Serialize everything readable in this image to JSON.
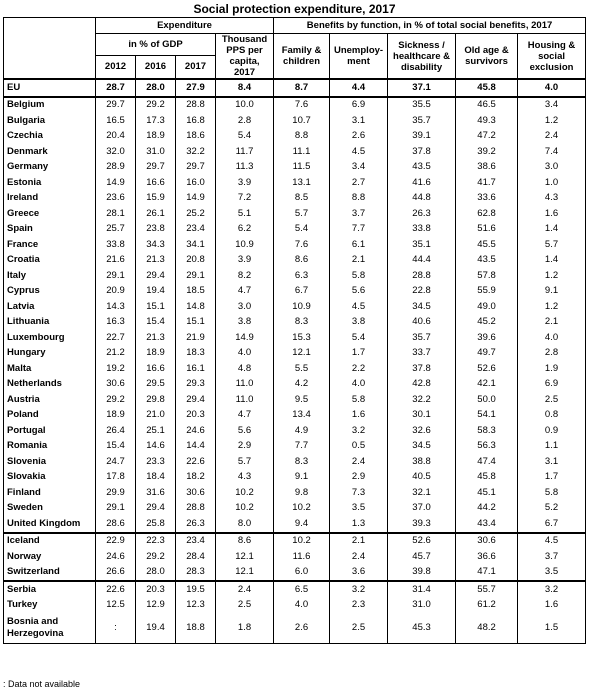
{
  "title": "Social protection expenditure, 2017",
  "header": {
    "expenditure": "Expenditure",
    "benefits": "Benefits by function, in % of total social benefits, 2017",
    "pct_gdp": "in % of GDP",
    "pps": "Thousand PPS per capita, 2017",
    "years": [
      "2012",
      "2016",
      "2017"
    ],
    "family": "Family & children",
    "unemployment": "Unemploy-ment",
    "sickness": "Sickness / healthcare & disability",
    "oldage": "Old age & survivors",
    "housing": "Housing & social exclusion"
  },
  "rows": [
    {
      "country": "EU",
      "v": [
        "28.7",
        "28.0",
        "27.9",
        "8.4",
        "8.7",
        "4.4",
        "37.1",
        "45.8",
        "4.0"
      ]
    },
    {
      "country": "Belgium",
      "v": [
        "29.7",
        "29.2",
        "28.8",
        "10.0",
        "7.6",
        "6.9",
        "35.5",
        "46.5",
        "3.4"
      ]
    },
    {
      "country": "Bulgaria",
      "v": [
        "16.5",
        "17.3",
        "16.8",
        "2.8",
        "10.7",
        "3.1",
        "35.7",
        "49.3",
        "1.2"
      ]
    },
    {
      "country": "Czechia",
      "v": [
        "20.4",
        "18.9",
        "18.6",
        "5.4",
        "8.8",
        "2.6",
        "39.1",
        "47.2",
        "2.4"
      ]
    },
    {
      "country": "Denmark",
      "v": [
        "32.0",
        "31.0",
        "32.2",
        "11.7",
        "11.1",
        "4.5",
        "37.8",
        "39.2",
        "7.4"
      ]
    },
    {
      "country": "Germany",
      "v": [
        "28.9",
        "29.7",
        "29.7",
        "11.3",
        "11.5",
        "3.4",
        "43.5",
        "38.6",
        "3.0"
      ]
    },
    {
      "country": "Estonia",
      "v": [
        "14.9",
        "16.6",
        "16.0",
        "3.9",
        "13.1",
        "2.7",
        "41.6",
        "41.7",
        "1.0"
      ]
    },
    {
      "country": "Ireland",
      "v": [
        "23.6",
        "15.9",
        "14.9",
        "7.2",
        "8.5",
        "8.8",
        "44.8",
        "33.6",
        "4.3"
      ]
    },
    {
      "country": "Greece",
      "v": [
        "28.1",
        "26.1",
        "25.2",
        "5.1",
        "5.7",
        "3.7",
        "26.3",
        "62.8",
        "1.6"
      ]
    },
    {
      "country": "Spain",
      "v": [
        "25.7",
        "23.8",
        "23.4",
        "6.2",
        "5.4",
        "7.7",
        "33.8",
        "51.6",
        "1.4"
      ]
    },
    {
      "country": "France",
      "v": [
        "33.8",
        "34.3",
        "34.1",
        "10.9",
        "7.6",
        "6.1",
        "35.1",
        "45.5",
        "5.7"
      ]
    },
    {
      "country": "Croatia",
      "v": [
        "21.6",
        "21.3",
        "20.8",
        "3.9",
        "8.6",
        "2.1",
        "44.4",
        "43.5",
        "1.4"
      ]
    },
    {
      "country": "Italy",
      "v": [
        "29.1",
        "29.4",
        "29.1",
        "8.2",
        "6.3",
        "5.8",
        "28.8",
        "57.8",
        "1.2"
      ]
    },
    {
      "country": "Cyprus",
      "v": [
        "20.9",
        "19.4",
        "18.5",
        "4.7",
        "6.7",
        "5.6",
        "22.8",
        "55.9",
        "9.1"
      ]
    },
    {
      "country": "Latvia",
      "v": [
        "14.3",
        "15.1",
        "14.8",
        "3.0",
        "10.9",
        "4.5",
        "34.5",
        "49.0",
        "1.2"
      ]
    },
    {
      "country": "Lithuania",
      "v": [
        "16.3",
        "15.4",
        "15.1",
        "3.8",
        "8.3",
        "3.8",
        "40.6",
        "45.2",
        "2.1"
      ]
    },
    {
      "country": "Luxembourg",
      "v": [
        "22.7",
        "21.3",
        "21.9",
        "14.9",
        "15.3",
        "5.4",
        "35.7",
        "39.6",
        "4.0"
      ]
    },
    {
      "country": "Hungary",
      "v": [
        "21.2",
        "18.9",
        "18.3",
        "4.0",
        "12.1",
        "1.7",
        "33.7",
        "49.7",
        "2.8"
      ]
    },
    {
      "country": "Malta",
      "v": [
        "19.2",
        "16.6",
        "16.1",
        "4.8",
        "5.5",
        "2.2",
        "37.8",
        "52.6",
        "1.9"
      ]
    },
    {
      "country": "Netherlands",
      "v": [
        "30.6",
        "29.5",
        "29.3",
        "11.0",
        "4.2",
        "4.0",
        "42.8",
        "42.1",
        "6.9"
      ]
    },
    {
      "country": "Austria",
      "v": [
        "29.2",
        "29.8",
        "29.4",
        "11.0",
        "9.5",
        "5.8",
        "32.2",
        "50.0",
        "2.5"
      ]
    },
    {
      "country": "Poland",
      "v": [
        "18.9",
        "21.0",
        "20.3",
        "4.7",
        "13.4",
        "1.6",
        "30.1",
        "54.1",
        "0.8"
      ]
    },
    {
      "country": "Portugal",
      "v": [
        "26.4",
        "25.1",
        "24.6",
        "5.6",
        "4.9",
        "3.2",
        "32.6",
        "58.3",
        "0.9"
      ]
    },
    {
      "country": "Romania",
      "v": [
        "15.4",
        "14.6",
        "14.4",
        "2.9",
        "7.7",
        "0.5",
        "34.5",
        "56.3",
        "1.1"
      ]
    },
    {
      "country": "Slovenia",
      "v": [
        "24.7",
        "23.3",
        "22.6",
        "5.7",
        "8.3",
        "2.4",
        "38.8",
        "47.4",
        "3.1"
      ]
    },
    {
      "country": "Slovakia",
      "v": [
        "17.8",
        "18.4",
        "18.2",
        "4.3",
        "9.1",
        "2.9",
        "40.5",
        "45.8",
        "1.7"
      ]
    },
    {
      "country": "Finland",
      "v": [
        "29.9",
        "31.6",
        "30.6",
        "10.2",
        "9.8",
        "7.3",
        "32.1",
        "45.1",
        "5.8"
      ]
    },
    {
      "country": "Sweden",
      "v": [
        "29.1",
        "29.4",
        "28.8",
        "10.2",
        "10.2",
        "3.5",
        "37.0",
        "44.2",
        "5.2"
      ]
    },
    {
      "country": "United Kingdom",
      "v": [
        "28.6",
        "25.8",
        "26.3",
        "8.0",
        "9.4",
        "1.3",
        "39.3",
        "43.4",
        "6.7"
      ]
    },
    {
      "country": "Iceland",
      "v": [
        "22.9",
        "22.3",
        "23.4",
        "8.6",
        "10.2",
        "2.1",
        "52.6",
        "30.6",
        "4.5"
      ]
    },
    {
      "country": "Norway",
      "v": [
        "24.6",
        "29.2",
        "28.4",
        "12.1",
        "11.6",
        "2.4",
        "45.7",
        "36.6",
        "3.7"
      ]
    },
    {
      "country": "Switzerland",
      "v": [
        "26.6",
        "28.0",
        "28.3",
        "12.1",
        "6.0",
        "3.6",
        "39.8",
        "47.1",
        "3.5"
      ]
    },
    {
      "country": "Serbia",
      "v": [
        "22.6",
        "20.3",
        "19.5",
        "2.4",
        "6.5",
        "3.2",
        "31.4",
        "55.7",
        "3.2"
      ]
    },
    {
      "country": "Turkey",
      "v": [
        "12.5",
        "12.9",
        "12.3",
        "2.5",
        "4.0",
        "2.3",
        "31.0",
        "61.2",
        "1.6"
      ]
    },
    {
      "country": "Bosnia and Herzegovina",
      "v": [
        ":",
        "19.4",
        "18.8",
        "1.8",
        "2.6",
        "2.5",
        "45.3",
        "48.2",
        "1.5"
      ]
    }
  ],
  "separators_before": [
    "Belgium",
    "Iceland",
    "Serbia"
  ],
  "footnote": ": Data not available"
}
